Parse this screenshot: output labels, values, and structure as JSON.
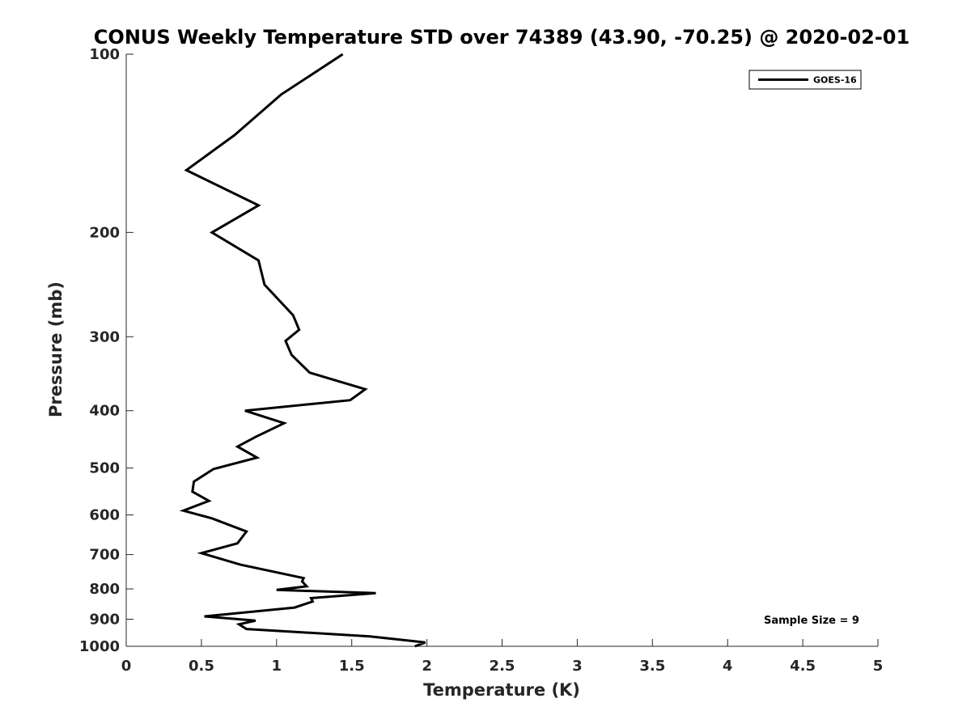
{
  "chart_data": {
    "type": "line",
    "title": "CONUS Weekly Temperature STD over 74389 (43.90, -70.25) @ 2020-02-01",
    "xlabel": "Temperature (K)",
    "ylabel": "Pressure (mb)",
    "xlim": [
      0,
      5
    ],
    "ylim": [
      100,
      1000
    ],
    "yscale": "log",
    "y_reversed": true,
    "xticks": [
      0,
      0.5,
      1,
      1.5,
      2,
      2.5,
      3,
      3.5,
      4,
      4.5,
      5
    ],
    "xtick_labels": [
      "0",
      "0.5",
      "1",
      "1.5",
      "2",
      "2.5",
      "3",
      "3.5",
      "4",
      "4.5",
      "5"
    ],
    "yticks": [
      100,
      200,
      300,
      400,
      500,
      600,
      700,
      800,
      900,
      1000
    ],
    "ytick_labels": [
      "100",
      "200",
      "300",
      "400",
      "500",
      "600",
      "700",
      "800",
      "900",
      "1000"
    ],
    "grid": false,
    "legend_position": "top-right",
    "line_color": "#000000",
    "series": [
      {
        "name": "GOES-16",
        "x": [
          1.44,
          1.03,
          0.72,
          0.4,
          0.88,
          0.57,
          0.88,
          0.92,
          1.11,
          1.15,
          1.06,
          1.1,
          1.22,
          1.59,
          1.49,
          0.79,
          1.05,
          0.86,
          0.74,
          0.87,
          0.58,
          0.45,
          0.44,
          0.55,
          0.38,
          0.57,
          0.8,
          0.74,
          0.5,
          0.76,
          1.18,
          1.17,
          1.2,
          1.0,
          1.66,
          1.23,
          1.24,
          1.12,
          0.52,
          0.86,
          0.75,
          0.8,
          1.62,
          1.99,
          1.92
        ],
        "y": [
          100,
          117,
          137,
          157,
          180,
          200,
          223,
          245,
          276,
          292,
          305,
          322,
          345,
          368,
          384,
          400,
          420,
          443,
          460,
          480,
          502,
          527,
          548,
          568,
          590,
          608,
          640,
          670,
          696,
          728,
          767,
          777,
          792,
          803,
          813,
          829,
          840,
          860,
          890,
          905,
          918,
          935,
          962,
          985,
          1000
        ]
      }
    ],
    "annotations": [
      "Sample Size = 9"
    ]
  }
}
